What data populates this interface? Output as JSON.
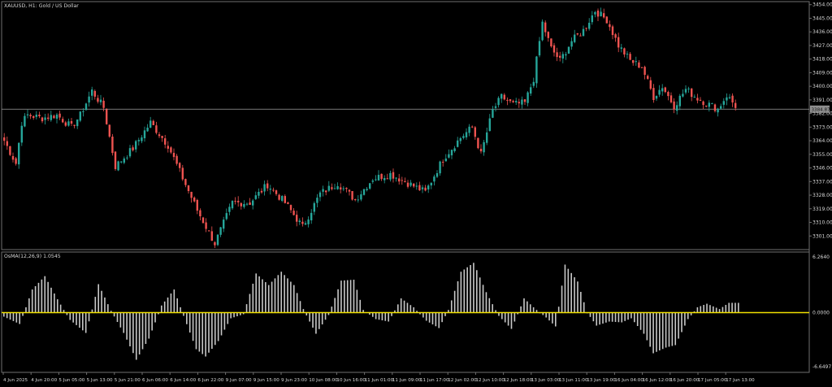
{
  "window": {
    "title": "XAUUSD, H1:  Gold / US Dollar",
    "indicator_label": "OsMA(12,26,9) 1.0545",
    "current_price": "3384.87"
  },
  "colors": {
    "background": "#000000",
    "bull": "#26a69a",
    "bear": "#ef5350",
    "grid_line": "#9e9e9e",
    "histogram": "#c8c8c8",
    "zero_line": "#f0e000",
    "price_badge": "#8f8f8f"
  },
  "chart_data": [
    {
      "type": "candlestick",
      "title": "XAUUSD, H1:  Gold / US Dollar",
      "symbol": "XAUUSD",
      "timeframe": "H1",
      "y_ticks": [
        "3454.00",
        "3445.00",
        "3436.00",
        "3427.00",
        "3418.00",
        "3409.00",
        "3400.00",
        "3391.00",
        "3382.00",
        "3373.00",
        "3364.00",
        "3355.00",
        "3346.00",
        "3337.00",
        "3328.00",
        "3319.00",
        "3310.00",
        "3301.00"
      ],
      "ylim": [
        3292,
        3456
      ],
      "current_price": 3384.87,
      "close_series_anchors": [
        [
          0,
          3364
        ],
        [
          4,
          3349
        ],
        [
          6,
          3376
        ],
        [
          8,
          3381
        ],
        [
          13,
          3379
        ],
        [
          18,
          3381
        ],
        [
          23,
          3373
        ],
        [
          26,
          3381
        ],
        [
          30,
          3397
        ],
        [
          34,
          3386
        ],
        [
          38,
          3347
        ],
        [
          44,
          3359
        ],
        [
          50,
          3376
        ],
        [
          56,
          3361
        ],
        [
          62,
          3335
        ],
        [
          66,
          3318
        ],
        [
          72,
          3296
        ],
        [
          78,
          3323
        ],
        [
          84,
          3323
        ],
        [
          90,
          3335
        ],
        [
          96,
          3323
        ],
        [
          102,
          3307
        ],
        [
          108,
          3329
        ],
        [
          114,
          3336
        ],
        [
          120,
          3325
        ],
        [
          126,
          3339
        ],
        [
          132,
          3342
        ],
        [
          138,
          3336
        ],
        [
          144,
          3330
        ],
        [
          150,
          3352
        ],
        [
          156,
          3366
        ],
        [
          160,
          3373
        ],
        [
          163,
          3355
        ],
        [
          167,
          3384
        ],
        [
          170,
          3393
        ],
        [
          174,
          3388
        ],
        [
          178,
          3389
        ],
        [
          181,
          3405
        ],
        [
          184,
          3442
        ],
        [
          187,
          3425
        ],
        [
          190,
          3417
        ],
        [
          194,
          3430
        ],
        [
          198,
          3437
        ],
        [
          202,
          3450
        ],
        [
          206,
          3444
        ],
        [
          210,
          3427
        ],
        [
          214,
          3417
        ],
        [
          218,
          3413
        ],
        [
          222,
          3393
        ],
        [
          225,
          3400
        ],
        [
          229,
          3387
        ],
        [
          233,
          3398
        ],
        [
          237,
          3392
        ],
        [
          240,
          3389
        ],
        [
          244,
          3385
        ],
        [
          247,
          3394
        ],
        [
          250,
          3387
        ]
      ]
    },
    {
      "type": "bar",
      "title": "OsMA(12,26,9) 1.0545",
      "y_ticks": [
        "6.2640",
        "0.0000",
        "-6.6497"
      ],
      "ylim": [
        -6.6497,
        6.264
      ],
      "anchors": [
        [
          0,
          -0.5
        ],
        [
          5,
          -1.4
        ],
        [
          9,
          2.6
        ],
        [
          13,
          4.1
        ],
        [
          17,
          1.5
        ],
        [
          21,
          -0.9
        ],
        [
          26,
          -2.5
        ],
        [
          30,
          3.2
        ],
        [
          34,
          0.2
        ],
        [
          38,
          -2.5
        ],
        [
          42,
          -5.8
        ],
        [
          46,
          -3.2
        ],
        [
          50,
          0.8
        ],
        [
          54,
          2.6
        ],
        [
          57,
          -0.4
        ],
        [
          61,
          -4.5
        ],
        [
          64,
          -5.4
        ],
        [
          68,
          -3.5
        ],
        [
          72,
          -0.7
        ],
        [
          76,
          -0.2
        ],
        [
          80,
          4.4
        ],
        [
          84,
          3.1
        ],
        [
          88,
          4.6
        ],
        [
          92,
          3.1
        ],
        [
          95,
          0.4
        ],
        [
          99,
          -2.6
        ],
        [
          103,
          -0.3
        ],
        [
          107,
          3.6
        ],
        [
          111,
          3.7
        ],
        [
          114,
          0.3
        ],
        [
          118,
          -0.8
        ],
        [
          122,
          -1.1
        ],
        [
          126,
          1.6
        ],
        [
          130,
          0.6
        ],
        [
          134,
          -1.0
        ],
        [
          138,
          -1.9
        ],
        [
          141,
          0.3
        ],
        [
          145,
          4.6
        ],
        [
          149,
          5.6
        ],
        [
          153,
          2.3
        ],
        [
          157,
          -0.4
        ],
        [
          161,
          -2.0
        ],
        [
          165,
          1.6
        ],
        [
          168,
          0.6
        ],
        [
          172,
          -0.6
        ],
        [
          175,
          -1.7
        ],
        [
          178,
          5.4
        ],
        [
          182,
          3.5
        ],
        [
          185,
          0.0
        ],
        [
          188,
          -1.6
        ],
        [
          192,
          -1.1
        ],
        [
          196,
          -1.2
        ],
        [
          199,
          -0.7
        ],
        [
          203,
          -2.6
        ],
        [
          206,
          -5.0
        ],
        [
          210,
          -4.3
        ],
        [
          213,
          -4.0
        ],
        [
          217,
          -0.8
        ],
        [
          220,
          0.6
        ],
        [
          223,
          1.0
        ],
        [
          227,
          0.4
        ],
        [
          230,
          1.1
        ],
        [
          233,
          1.1
        ]
      ]
    }
  ],
  "time_labels": [
    "4 Jun 2025",
    "4 Jun 20:00",
    "5 Jun 05:00",
    "5 Jun 13:00",
    "5 Jun 21:00",
    "6 Jun 06:00",
    "6 Jun 14:00",
    "6 Jun 22:00",
    "9 Jun 07:00",
    "9 Jun 15:00",
    "9 Jun 23:00",
    "10 Jun 08:00",
    "10 Jun 16:00",
    "11 Jun 01:00",
    "11 Jun 09:00",
    "11 Jun 17:00",
    "12 Jun 02:00",
    "12 Jun 10:00",
    "12 Jun 18:00",
    "13 Jun 03:00",
    "13 Jun 11:00",
    "13 Jun 19:00",
    "16 Jun 04:00",
    "16 Jun 12:00",
    "16 Jun 20:00",
    "17 Jun 05:00",
    "17 Jun 13:00"
  ]
}
